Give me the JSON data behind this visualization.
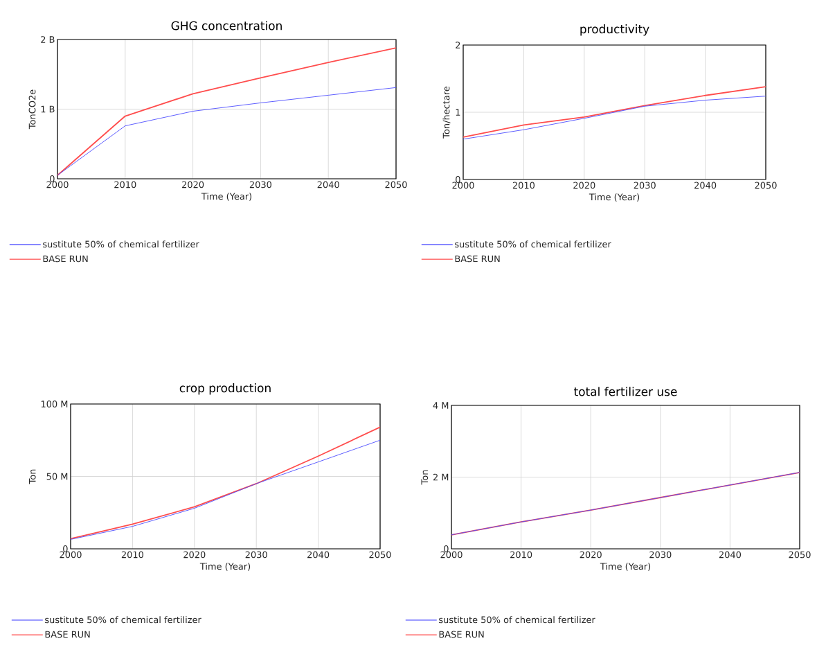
{
  "chart_data": [
    {
      "type": "line",
      "title": "GHG concentration",
      "xlabel": "Time (Year)",
      "ylabel": "TonCO2e",
      "x": [
        2000,
        2010,
        2020,
        2030,
        2040,
        2050
      ],
      "xlim": [
        2000,
        2050
      ],
      "xticks": [
        2000,
        2010,
        2020,
        2030,
        2040,
        2050
      ],
      "ylim": [
        0,
        2000000000
      ],
      "yticks": [
        {
          "value": 0,
          "label": "0"
        },
        {
          "value": 1000000000,
          "label": "1 B"
        },
        {
          "value": 2000000000,
          "label": "2 B"
        }
      ],
      "grid": true,
      "legend": "bottom",
      "marker": "none",
      "series": [
        {
          "name": "sustitute 50% of chemical fertilizer",
          "color": "#4d4dff",
          "values": [
            50000000,
            760000000,
            970000000,
            1090000000,
            1200000000,
            1310000000
          ]
        },
        {
          "name": "BASE RUN",
          "color": "#ff4d4d",
          "values": [
            50000000,
            900000000,
            1220000000,
            1450000000,
            1670000000,
            1880000000
          ]
        }
      ]
    },
    {
      "type": "line",
      "title": "productivity",
      "xlabel": "Time (Year)",
      "ylabel": "Ton/hectare",
      "x": [
        2000,
        2010,
        2020,
        2030,
        2040,
        2050
      ],
      "xlim": [
        2000,
        2050
      ],
      "xticks": [
        2000,
        2010,
        2020,
        2030,
        2040,
        2050
      ],
      "ylim": [
        0,
        2
      ],
      "yticks": [
        0,
        1,
        2
      ],
      "grid": true,
      "legend": "bottom",
      "marker": "none",
      "series": [
        {
          "name": "sustitute 50% of chemical fertilizer",
          "color": "#4d4dff",
          "values": [
            0.6,
            0.74,
            0.91,
            1.09,
            1.18,
            1.24
          ]
        },
        {
          "name": "BASE RUN",
          "color": "#ff4d4d",
          "values": [
            0.63,
            0.81,
            0.93,
            1.1,
            1.25,
            1.38
          ]
        }
      ]
    },
    {
      "type": "line",
      "title": "crop production",
      "xlabel": "Time (Year)",
      "ylabel": "Ton",
      "x": [
        2000,
        2010,
        2020,
        2030,
        2040,
        2050
      ],
      "xlim": [
        2000,
        2050
      ],
      "xticks": [
        2000,
        2010,
        2020,
        2030,
        2040,
        2050
      ],
      "ylim": [
        0,
        100000000
      ],
      "yticks": [
        {
          "value": 0,
          "label": "0"
        },
        {
          "value": 50000000,
          "label": "50 M"
        },
        {
          "value": 100000000,
          "label": "100 M"
        }
      ],
      "grid": true,
      "legend": "bottom",
      "marker": "none",
      "series": [
        {
          "name": "sustitute 50% of chemical fertilizer",
          "color": "#4d4dff",
          "values": [
            6500000,
            15500000,
            28000000,
            45000000,
            60000000,
            75000000
          ]
        },
        {
          "name": "BASE RUN",
          "color": "#ff4d4d",
          "values": [
            7000000,
            17000000,
            29000000,
            45000000,
            64000000,
            84000000
          ]
        }
      ]
    },
    {
      "type": "line",
      "title": "total fertilizer use",
      "xlabel": "Time (Year)",
      "ylabel": "Ton",
      "x": [
        2000,
        2010,
        2020,
        2030,
        2040,
        2050
      ],
      "xlim": [
        2000,
        2050
      ],
      "xticks": [
        2000,
        2010,
        2020,
        2030,
        2040,
        2050
      ],
      "ylim": [
        0,
        4000000
      ],
      "yticks": [
        {
          "value": 0,
          "label": "0"
        },
        {
          "value": 2000000,
          "label": "2 M"
        },
        {
          "value": 4000000,
          "label": "4 M"
        }
      ],
      "grid": true,
      "legend": "bottom",
      "marker": "none",
      "series": [
        {
          "name": "sustitute 50% of chemical fertilizer",
          "color": "#4d4dff",
          "values": [
            390000,
            750000,
            1080000,
            1430000,
            1780000,
            2130000
          ]
        },
        {
          "name": "BASE RUN",
          "color": "#ff4d4d",
          "values": [
            390000,
            750000,
            1080000,
            1430000,
            1780000,
            2130000
          ]
        }
      ]
    }
  ]
}
